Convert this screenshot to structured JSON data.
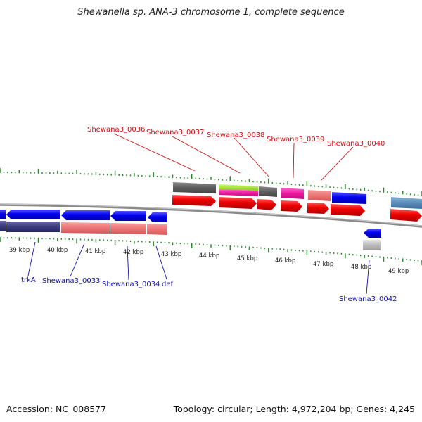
{
  "title": "Shewanella sp. ANA-3 chromosome 1, complete sequence",
  "footer": {
    "accession": "Accession: NC_008577",
    "topology": "Topology: circular; Length: 4,972,204 bp; Genes: 4,245"
  },
  "ruler": {
    "labels": [
      "39 kbp",
      "40 kbp",
      "41 kbp",
      "42 kbp",
      "43 kbp",
      "44 kbp",
      "45 kbp",
      "46 kbp",
      "47 kbp",
      "48 kbp",
      "49 kbp"
    ]
  },
  "tracks": {
    "top_labels": [
      "Shewana3_0036",
      "Shewana3_0037",
      "Shewana3_0038",
      "Shewana3_0039",
      "Shewana3_0040"
    ],
    "bottom_labels": [
      "trkA",
      "Shewana3_0033",
      "Shewana3_0034",
      "def",
      "Shewana3_0042"
    ]
  },
  "colors": {
    "forward_label": "#cc1111",
    "reverse_label": "#1111aa",
    "forward_gene": "#ee0000",
    "reverse_gene": "#0000ee",
    "tick": "#2a8a2a",
    "backbone": "#777777"
  }
}
